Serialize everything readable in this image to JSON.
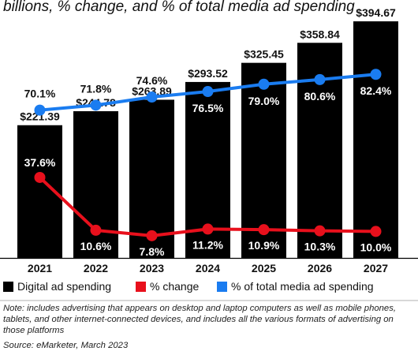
{
  "chart_data": {
    "type": "bar",
    "subtitle": "billions, % change, and % of total media ad spending",
    "categories": [
      "2021",
      "2022",
      "2023",
      "2024",
      "2025",
      "2026",
      "2027"
    ],
    "series": [
      {
        "name": "Digital ad spending",
        "kind": "bar",
        "color": "#000000",
        "values": [
          221.39,
          244.78,
          263.89,
          293.52,
          325.45,
          358.84,
          394.67
        ],
        "labels": [
          "$221.39",
          "$244.78",
          "$263.89",
          "$293.52",
          "$325.45",
          "$358.84",
          "$394.67"
        ]
      },
      {
        "name": "% change",
        "kind": "line",
        "color": "#e8101c",
        "values": [
          37.6,
          10.6,
          7.8,
          11.2,
          10.9,
          10.3,
          10.0
        ],
        "labels": [
          "37.6%",
          "10.6%",
          "7.8%",
          "11.2%",
          "10.9%",
          "10.3%",
          "10.0%"
        ]
      },
      {
        "name": "% of total media ad spending",
        "kind": "line",
        "color": "#1a7cf0",
        "values": [
          70.1,
          71.8,
          74.6,
          76.5,
          79.0,
          80.6,
          82.4
        ],
        "labels": [
          "70.1%",
          "71.8%",
          "74.6%",
          "76.5%",
          "79.0%",
          "80.6%",
          "82.4%"
        ]
      }
    ],
    "legend_position": "bottom",
    "grid": false
  },
  "note": "Note: includes advertising that appears on desktop and laptop computers as well as mobile phones, tablets, and other internet-connected devices, and includes all the various formats of advertising on those platforms",
  "source": "Source: eMarketer, March 2023"
}
